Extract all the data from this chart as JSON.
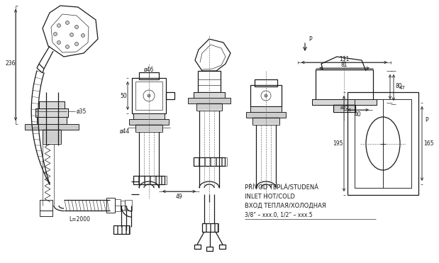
{
  "bg_color": "#ffffff",
  "line_color": "#1a1a1a",
  "annotations": {
    "diameter_35": "ø35",
    "diameter_46": "ø46",
    "diameter_44": "ø44",
    "diameter_22": "ø22",
    "dim_131": "131",
    "dim_81": "81",
    "dim_80": "80",
    "dim_40": "40",
    "dim_47": "47",
    "dim_50": "50",
    "dim_49": "49",
    "dim_236": "236",
    "dim_195": "195",
    "dim_165": "165",
    "L2000": "L=2000",
    "P_top": "P",
    "P_right": "P",
    "text1": "PŘÍVOD TEPLÁ/STUDENÁ",
    "text2": "INLET HOT/COLD",
    "text3": "ВХОД ТЕПЛАЯ/ХОЛОДНАЯ",
    "text4": "3/8” – xxx.0, 1/2” – xxx.5"
  }
}
